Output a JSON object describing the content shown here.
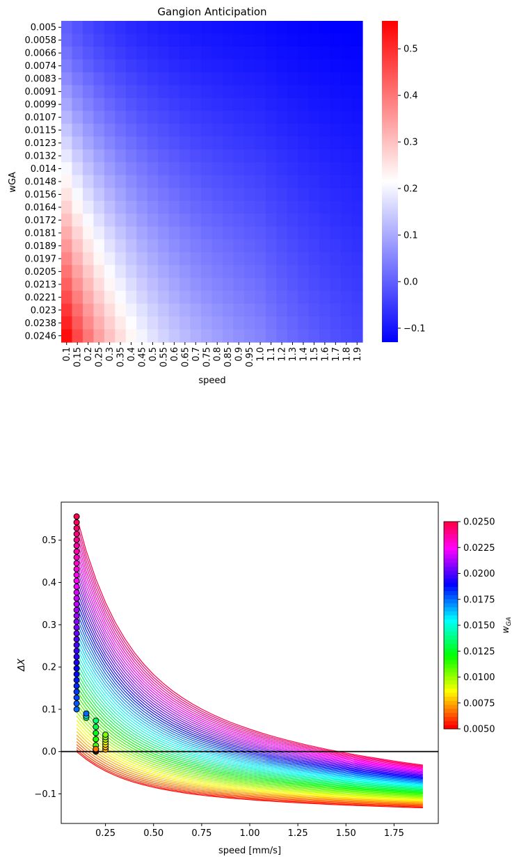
{
  "chart_data": [
    {
      "type": "heatmap",
      "title": "Gangion Anticipation",
      "xlabel": "speed",
      "ylabel": "wGA",
      "x_tick_labels": [
        "0.1",
        "0.15",
        "0.2",
        "0.25",
        "0.3",
        "0.35",
        "0.4",
        "0.45",
        "0.5",
        "0.55",
        "0.6",
        "0.65",
        "0.7",
        "0.75",
        "0.8",
        "0.85",
        "0.9",
        "0.95",
        "1.0",
        "1.1",
        "1.2",
        "1.3",
        "1.4",
        "1.5",
        "1.6",
        "1.7",
        "1.8",
        "1.9"
      ],
      "y_tick_labels": [
        "0.005",
        "0.0058",
        "0.0066",
        "0.0074",
        "0.0083",
        "0.0091",
        "0.0099",
        "0.0107",
        "0.0115",
        "0.0123",
        "0.0132",
        "0.014",
        "0.0148",
        "0.0156",
        "0.0164",
        "0.0172",
        "0.0181",
        "0.0189",
        "0.0197",
        "0.0205",
        "0.0213",
        "0.0221",
        "0.023",
        "0.0238",
        "0.0246"
      ],
      "speed_range": [
        0.1,
        1.9
      ],
      "wGA_range": [
        0.005,
        0.025
      ],
      "value_range": [
        -0.13,
        0.56
      ],
      "colormap": [
        "#0000ff",
        "#ffffff",
        "#ff0000"
      ],
      "colorbar_ticks": [
        -0.1,
        0.0,
        0.1,
        0.2,
        0.3,
        0.4,
        0.5
      ],
      "colorbar_tick_labels": [
        "−0.1",
        "0.0",
        "0.1",
        "0.2",
        "0.3",
        "0.4",
        "0.5"
      ]
    },
    {
      "type": "line",
      "xlabel": "speed [mm/s]",
      "ylabel": "ΔX",
      "xlim": [
        0.02,
        1.98
      ],
      "ylim": [
        -0.17,
        0.59
      ],
      "x_ticks": [
        0.25,
        0.5,
        0.75,
        1.0,
        1.25,
        1.5,
        1.75
      ],
      "x_tick_labels": [
        "0.25",
        "0.50",
        "0.75",
        "1.00",
        "1.25",
        "1.50",
        "1.75"
      ],
      "y_ticks": [
        -0.1,
        0.0,
        0.1,
        0.2,
        0.3,
        0.4,
        0.5
      ],
      "y_tick_labels": [
        "−0.1",
        "0.0",
        "0.1",
        "0.2",
        "0.3",
        "0.4",
        "0.5"
      ],
      "reference_line_y": 0,
      "series_count": 51,
      "wGA_range": [
        0.005,
        0.025
      ],
      "speed_range": [
        0.1,
        1.9
      ],
      "series_endpoints": {
        "wGA_0.005": {
          "at_speed_0.1": 0.0,
          "at_speed_1.9": -0.133
        },
        "wGA_0.025": {
          "at_speed_0.1": 0.556,
          "at_speed_1.9": -0.032
        }
      },
      "peak_markers": [
        {
          "speed": 0.1,
          "dx_min": 0.1,
          "dx_max": 0.556
        },
        {
          "speed": 0.15,
          "dx_min": 0.08,
          "dx_max": 0.09
        },
        {
          "speed": 0.2,
          "dx_min": 0.0,
          "dx_max": 0.073
        },
        {
          "speed": 0.25,
          "dx_min": 0.005,
          "dx_max": 0.04
        }
      ],
      "colorbar": {
        "label": "wGA",
        "ticks": [
          0.005,
          0.0075,
          0.01,
          0.0125,
          0.015,
          0.0175,
          0.02,
          0.0225,
          0.025
        ],
        "tick_labels": [
          "0.0050",
          "0.0075",
          "0.0100",
          "0.0125",
          "0.0150",
          "0.0175",
          "0.0200",
          "0.0225",
          "0.0250"
        ],
        "colormap": "hsv"
      }
    }
  ]
}
